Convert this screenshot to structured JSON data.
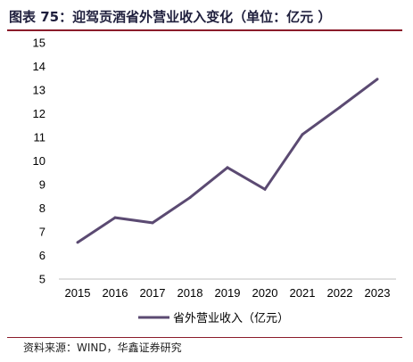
{
  "header": {
    "title": "图表 75：迎驾贡酒省外营业收入变化（单位：亿元 ）"
  },
  "footer": {
    "source": "资料来源：WIND，华鑫证券研究"
  },
  "chart_data": {
    "type": "line",
    "title": "",
    "xlabel": "",
    "ylabel": "",
    "x": [
      "2015",
      "2016",
      "2017",
      "2018",
      "2019",
      "2020",
      "2021",
      "2022",
      "2023"
    ],
    "series": [
      {
        "name": "省外营业收入（亿元）",
        "values": [
          6.55,
          7.6,
          7.38,
          8.45,
          9.72,
          8.8,
          11.12,
          12.27,
          13.46
        ]
      }
    ],
    "ylim": [
      5,
      15
    ],
    "yticks": [
      5,
      6,
      7,
      8,
      9,
      10,
      11,
      12,
      13,
      14,
      15
    ],
    "grid": false,
    "legend": "bottom",
    "colors": {
      "series": "#5b4a72",
      "axis": "#bfbfbf"
    }
  }
}
